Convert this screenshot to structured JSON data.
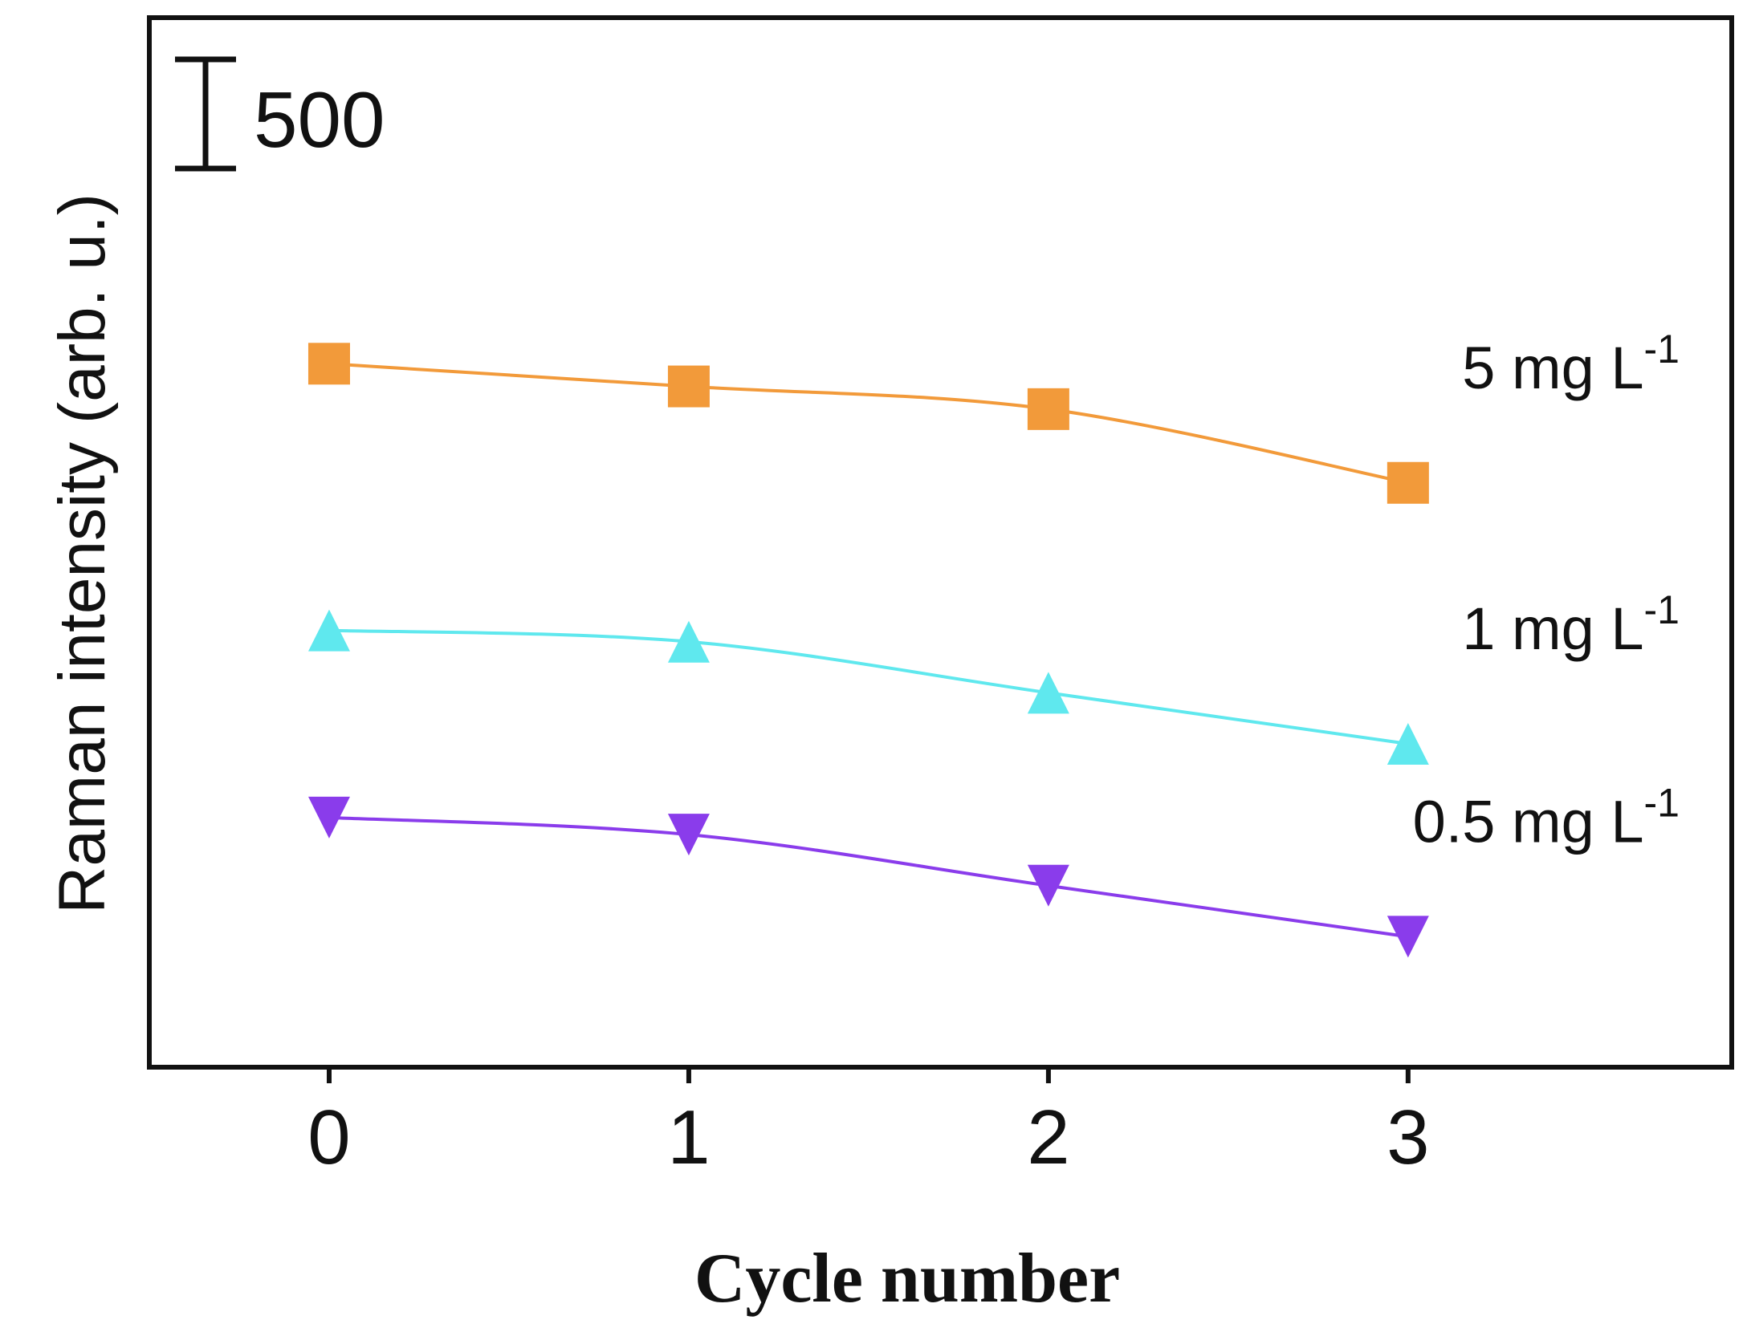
{
  "chart_data": {
    "type": "line",
    "title": "",
    "xlabel": "Cycle number",
    "ylabel": "Raman intensity (arb. u.)",
    "x": [
      0,
      1,
      2,
      3
    ],
    "xticks": [
      "0",
      "1",
      "2",
      "3"
    ],
    "xlim": [
      -0.5,
      3.9
    ],
    "ylim": [
      0,
      9250
    ],
    "yaxis_ticks_shown": false,
    "scale_bar": {
      "label": "500",
      "value": 500
    },
    "grid": false,
    "legend": "inline labels at right end of each series",
    "series": [
      {
        "name": "5 mg L-1",
        "label_main": "5 mg L",
        "label_sup": "-1",
        "marker": "square",
        "color": "#F29A3A",
        "values": [
          6200,
          6000,
          5800,
          5150
        ]
      },
      {
        "name": "1 mg L-1",
        "label_main": "1 mg L",
        "label_sup": "-1",
        "marker": "triangle-up",
        "color": "#5FE8EE",
        "values": [
          3850,
          3750,
          3300,
          2850
        ]
      },
      {
        "name": "0.5 mg L-1",
        "label_main": "0.5 mg L",
        "label_sup": "-1",
        "marker": "triangle-down",
        "color": "#8A3CEB",
        "values": [
          2200,
          2050,
          1600,
          1150
        ]
      }
    ]
  }
}
